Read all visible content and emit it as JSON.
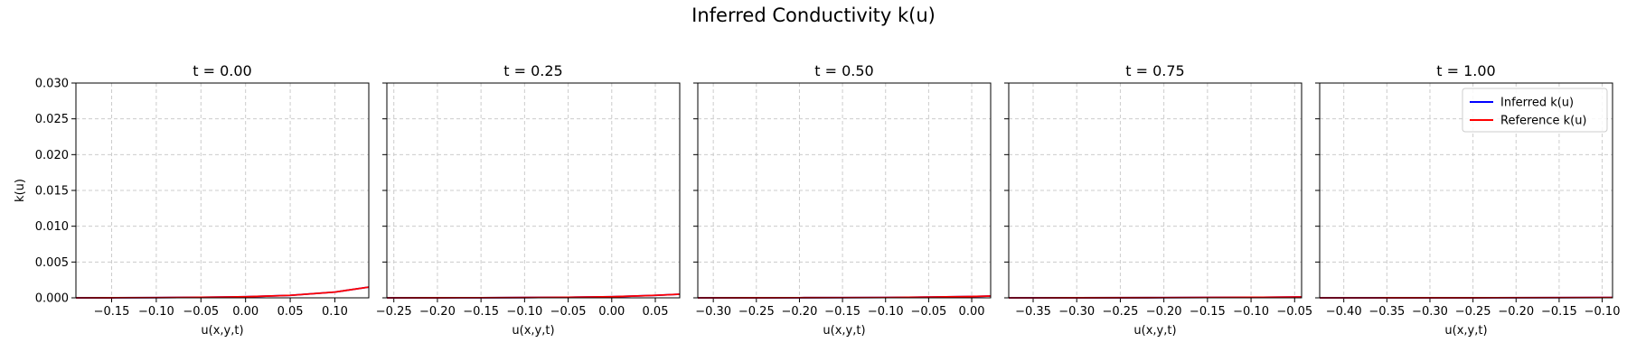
{
  "figure": {
    "suptitle": "Inferred Conductivity k(u)"
  },
  "colors": {
    "inferred": "#0000ff",
    "reference": "#ff0000",
    "grid": "#cccccc",
    "axes": "#000000"
  },
  "chart_data": [
    {
      "type": "line",
      "title": "t = 0.00",
      "xlabel": "u(x,y,t)",
      "ylabel": "k(u)",
      "xlim": [
        -0.19,
        0.138
      ],
      "ylim": [
        0.0,
        0.03
      ],
      "xticks": [
        -0.15,
        -0.1,
        -0.05,
        0.0,
        0.05,
        0.1
      ],
      "xtick_labels": [
        "−0.15",
        "−0.10",
        "−0.05",
        "0.00",
        "0.05",
        "0.10"
      ],
      "yticks": [
        0.0,
        0.005,
        0.01,
        0.015,
        0.02,
        0.025,
        0.03
      ],
      "ytick_labels": [
        "0.000",
        "0.005",
        "0.010",
        "0.015",
        "0.020",
        "0.025",
        "0.030"
      ],
      "grid": true,
      "legend": null,
      "series": [
        {
          "name": "Inferred k(u)",
          "color": "#0000ff",
          "x": [
            -0.19,
            -0.15,
            -0.1,
            -0.05,
            0.0,
            0.05,
            0.1,
            0.138
          ],
          "y": [
            0.0,
            1e-05,
            3e-05,
            7e-05,
            0.00015,
            0.00035,
            0.0008,
            0.0015
          ]
        },
        {
          "name": "Reference k(u)",
          "color": "#ff0000",
          "x": [
            -0.19,
            -0.15,
            -0.1,
            -0.05,
            0.0,
            0.05,
            0.1,
            0.138
          ],
          "y": [
            0.0,
            1e-05,
            3e-05,
            7e-05,
            0.00015,
            0.00035,
            0.0008,
            0.0015
          ]
        }
      ]
    },
    {
      "type": "line",
      "title": "t = 0.25",
      "xlabel": "u(x,y,t)",
      "ylabel": "",
      "xlim": [
        -0.258,
        0.078
      ],
      "ylim": [
        0.0,
        0.03
      ],
      "xticks": [
        -0.25,
        -0.2,
        -0.15,
        -0.1,
        -0.05,
        0.0,
        0.05
      ],
      "xtick_labels": [
        "−0.25",
        "−0.20",
        "−0.15",
        "−0.10",
        "−0.05",
        "0.00",
        "0.05"
      ],
      "yticks": [
        0.0,
        0.005,
        0.01,
        0.015,
        0.02,
        0.025,
        0.03
      ],
      "ytick_labels": [],
      "grid": true,
      "legend": null,
      "series": [
        {
          "name": "Inferred k(u)",
          "color": "#0000ff",
          "x": [
            -0.258,
            -0.2,
            -0.15,
            -0.1,
            -0.05,
            0.0,
            0.05,
            0.078
          ],
          "y": [
            0.0,
            1e-05,
            2e-05,
            4e-05,
            8e-05,
            0.00015,
            0.00035,
            0.0005
          ]
        },
        {
          "name": "Reference k(u)",
          "color": "#ff0000",
          "x": [
            -0.258,
            -0.2,
            -0.15,
            -0.1,
            -0.05,
            0.0,
            0.05,
            0.078
          ],
          "y": [
            0.0,
            1e-05,
            2e-05,
            4e-05,
            8e-05,
            0.00015,
            0.00035,
            0.0005
          ]
        }
      ]
    },
    {
      "type": "line",
      "title": "t = 0.50",
      "xlabel": "u(x,y,t)",
      "ylabel": "",
      "xlim": [
        -0.318,
        0.022
      ],
      "ylim": [
        0.0,
        0.03
      ],
      "xticks": [
        -0.3,
        -0.25,
        -0.2,
        -0.15,
        -0.1,
        -0.05,
        0.0
      ],
      "xtick_labels": [
        "−0.30",
        "−0.25",
        "−0.20",
        "−0.15",
        "−0.10",
        "−0.05",
        "0.00"
      ],
      "yticks": [
        0.0,
        0.005,
        0.01,
        0.015,
        0.02,
        0.025,
        0.03
      ],
      "ytick_labels": [],
      "grid": true,
      "legend": null,
      "series": [
        {
          "name": "Inferred k(u)",
          "color": "#0000ff",
          "x": [
            -0.318,
            -0.25,
            -0.2,
            -0.15,
            -0.1,
            -0.05,
            0.0,
            0.022
          ],
          "y": [
            0.0,
            1e-05,
            2e-05,
            3e-05,
            5e-05,
            0.0001,
            0.00018,
            0.00025
          ]
        },
        {
          "name": "Reference k(u)",
          "color": "#ff0000",
          "x": [
            -0.318,
            -0.25,
            -0.2,
            -0.15,
            -0.1,
            -0.05,
            0.0,
            0.022
          ],
          "y": [
            0.0,
            1e-05,
            2e-05,
            3e-05,
            5e-05,
            0.0001,
            0.00018,
            0.00025
          ]
        }
      ]
    },
    {
      "type": "line",
      "title": "t = 0.75",
      "xlabel": "u(x,y,t)",
      "ylabel": "",
      "xlim": [
        -0.378,
        -0.042
      ],
      "ylim": [
        0.0,
        0.03
      ],
      "xticks": [
        -0.35,
        -0.3,
        -0.25,
        -0.2,
        -0.15,
        -0.1,
        -0.05
      ],
      "xtick_labels": [
        "−0.35",
        "−0.30",
        "−0.25",
        "−0.20",
        "−0.15",
        "−0.10",
        "−0.05"
      ],
      "yticks": [
        0.0,
        0.005,
        0.01,
        0.015,
        0.02,
        0.025,
        0.03
      ],
      "ytick_labels": [],
      "grid": true,
      "legend": null,
      "series": [
        {
          "name": "Inferred k(u)",
          "color": "#0000ff",
          "x": [
            -0.378,
            -0.3,
            -0.2,
            -0.1,
            -0.042
          ],
          "y": [
            0.0,
            1e-05,
            3e-05,
            7e-05,
            0.00012
          ]
        },
        {
          "name": "Reference k(u)",
          "color": "#ff0000",
          "x": [
            -0.378,
            -0.3,
            -0.2,
            -0.1,
            -0.042
          ],
          "y": [
            0.0,
            1e-05,
            3e-05,
            7e-05,
            0.00012
          ]
        }
      ]
    },
    {
      "type": "line",
      "title": "t = 1.00",
      "xlabel": "u(x,y,t)",
      "ylabel": "",
      "xlim": [
        -0.428,
        -0.088
      ],
      "ylim": [
        0.0,
        0.03
      ],
      "xticks": [
        -0.4,
        -0.35,
        -0.3,
        -0.25,
        -0.2,
        -0.15,
        -0.1
      ],
      "xtick_labels": [
        "−0.40",
        "−0.35",
        "−0.30",
        "−0.25",
        "−0.20",
        "−0.15",
        "−0.10"
      ],
      "yticks": [
        0.0,
        0.005,
        0.01,
        0.015,
        0.02,
        0.025,
        0.03
      ],
      "ytick_labels": [],
      "grid": true,
      "legend": "upper right",
      "series": [
        {
          "name": "Inferred k(u)",
          "color": "#0000ff",
          "x": [
            -0.428,
            -0.35,
            -0.25,
            -0.15,
            -0.088
          ],
          "y": [
            0.0,
            5e-06,
            1e-05,
            3e-05,
            5e-05
          ]
        },
        {
          "name": "Reference k(u)",
          "color": "#ff0000",
          "x": [
            -0.428,
            -0.35,
            -0.25,
            -0.15,
            -0.088
          ],
          "y": [
            0.0,
            5e-06,
            1e-05,
            3e-05,
            5e-05
          ]
        }
      ]
    }
  ]
}
